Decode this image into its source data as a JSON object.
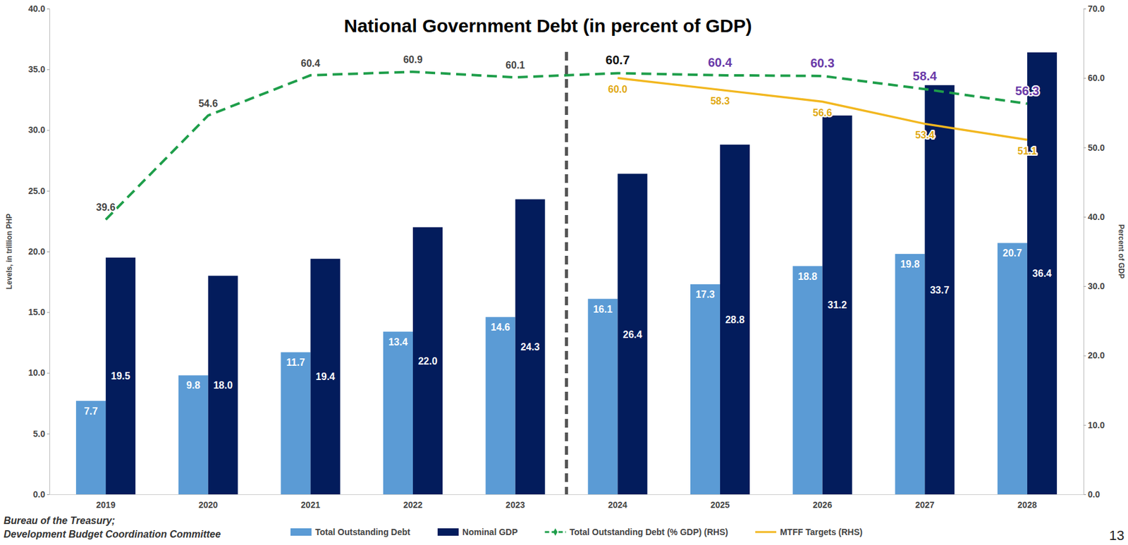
{
  "chart_data": {
    "type": "bar",
    "title": "National Government Debt (in percent of GDP)",
    "y_label": "Levels, in trillion PHP",
    "y2_label": "Percent of GDP",
    "categories": [
      "2019",
      "2020",
      "2021",
      "2022",
      "2023",
      "2024",
      "2025",
      "2026",
      "2027",
      "2028"
    ],
    "series": [
      {
        "name": "Total Outstanding Debt",
        "type": "bar",
        "color": "#5b9bd5",
        "values": [
          7.7,
          9.8,
          11.7,
          13.4,
          14.6,
          16.1,
          17.3,
          18.8,
          19.8,
          20.7
        ],
        "value_labels": [
          "7.7",
          "9.8",
          "11.7",
          "13.4",
          "14.6",
          "16.1",
          "17.3",
          "18.8",
          "19.8",
          "20.7"
        ]
      },
      {
        "name": "Nominal GDP",
        "type": "bar",
        "color": "#031c5c",
        "values": [
          19.5,
          18.0,
          19.4,
          22.0,
          24.3,
          26.4,
          28.8,
          31.2,
          33.7,
          36.4
        ],
        "value_labels": [
          "19.5",
          "18.0",
          "19.4",
          "22.0",
          "24.3",
          "26.4",
          "28.8",
          "31.2",
          "33.7",
          "36.4"
        ]
      },
      {
        "name": "Total Outstanding Debt (% GDP) (RHS)",
        "type": "line",
        "axis": "y2",
        "color": "#1e9e4a",
        "line_style": "dashed",
        "values": [
          39.6,
          54.6,
          60.4,
          60.9,
          60.1,
          60.7,
          60.4,
          60.3,
          58.4,
          56.3
        ],
        "value_labels": [
          "39.6",
          "54.6",
          "60.4",
          "60.9",
          "60.1",
          "60.7",
          "60.4",
          "60.3",
          "58.4",
          "56.3"
        ]
      },
      {
        "name": "MTFF Targets (RHS)",
        "type": "line",
        "axis": "y2",
        "color": "#f2b71f",
        "line_style": "solid",
        "values": [
          null,
          null,
          null,
          null,
          null,
          60.0,
          58.3,
          56.6,
          53.4,
          51.1
        ],
        "value_labels": [
          null,
          null,
          null,
          null,
          null,
          "60.0",
          "58.3",
          "56.6",
          "53.4",
          "51.1"
        ]
      }
    ],
    "ylim": [
      0,
      40
    ],
    "yticks": [
      {
        "value": 0,
        "label": "0.0"
      },
      {
        "value": 5,
        "label": "5.0"
      },
      {
        "value": 10,
        "label": "10.0"
      },
      {
        "value": 15,
        "label": "15.0"
      },
      {
        "value": 20,
        "label": "20.0"
      },
      {
        "value": 25,
        "label": "25.0"
      },
      {
        "value": 30,
        "label": "30.0"
      },
      {
        "value": 35,
        "label": "35.0"
      },
      {
        "value": 40,
        "label": "40.0"
      }
    ],
    "y2lim": [
      0,
      70
    ],
    "y2ticks": [
      {
        "value": 0,
        "label": "0.0"
      },
      {
        "value": 10,
        "label": "10.0"
      },
      {
        "value": 20,
        "label": "20.0"
      },
      {
        "value": 30,
        "label": "30.0"
      },
      {
        "value": 40,
        "label": "40.0"
      },
      {
        "value": 50,
        "label": "50.0"
      },
      {
        "value": 60,
        "label": "60.0"
      },
      {
        "value": 70,
        "label": "70.0"
      }
    ],
    "grid": false,
    "data_labels": true,
    "legend": "bottom",
    "source": [
      "Bureau of the Treasury;",
      "Development Budget Coordination Committee"
    ],
    "page_number": "13"
  }
}
